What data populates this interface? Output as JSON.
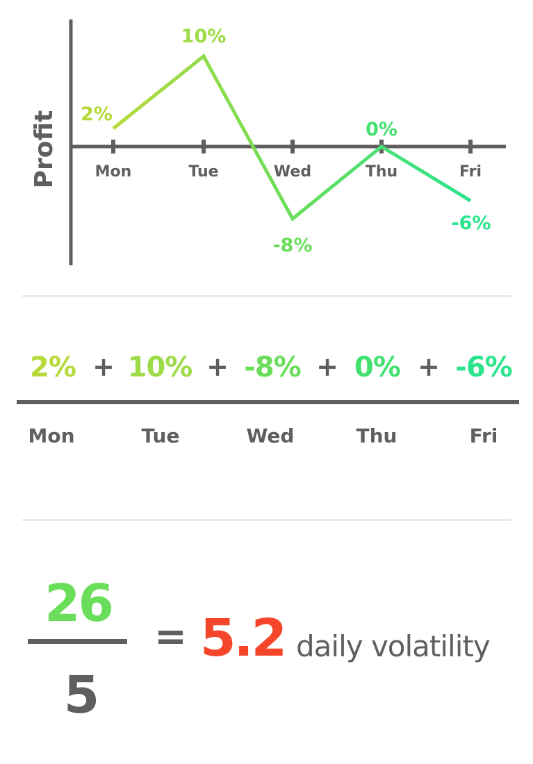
{
  "chart_data": {
    "type": "line",
    "ylabel": "Profit",
    "categories": [
      "Mon",
      "Tue",
      "Wed",
      "Thu",
      "Fri"
    ],
    "values": [
      2,
      10,
      -8,
      0,
      -6
    ],
    "data_labels": [
      "2%",
      "10%",
      "-8%",
      "0%",
      "-6%"
    ],
    "point_colors": [
      "#b6d93a",
      "#9ddc48",
      "#6ade5a",
      "#44e070",
      "#2be48c"
    ],
    "axis_color": "#5f5f5f",
    "grid": false
  },
  "sum": {
    "terms": [
      "2%",
      "10%",
      "-8%",
      "0%",
      "-6%"
    ],
    "operator": "+",
    "days": [
      "Mon",
      "Tue",
      "Wed",
      "Thu",
      "Fri"
    ]
  },
  "result": {
    "numerator": "26",
    "denominator": "5",
    "equals": "=",
    "value": "5.2",
    "label": "daily volatility",
    "numerator_color": "#6ade5a",
    "value_color": "#f5452a"
  }
}
